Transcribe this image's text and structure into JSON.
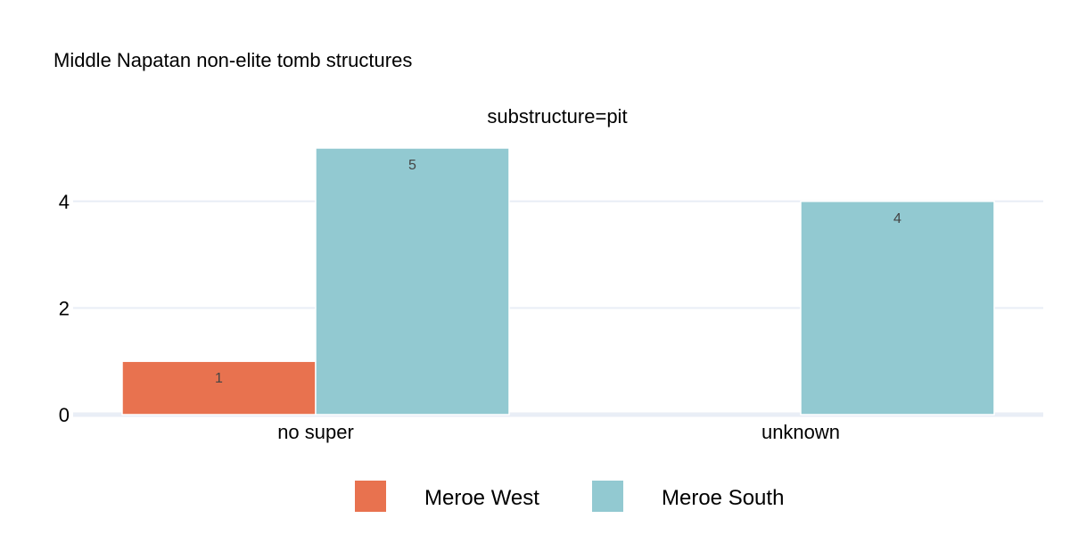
{
  "chart_data": {
    "type": "bar",
    "title": "Middle Napatan non-elite tomb structures",
    "facet_title": "substructure=pit",
    "xlabel": "",
    "ylabel": "",
    "categories": [
      "no super",
      "unknown"
    ],
    "series": [
      {
        "name": "Meroe West",
        "color": "#E8724F",
        "values": [
          1,
          null
        ]
      },
      {
        "name": "Meroe South",
        "color": "#92C9D1",
        "values": [
          5,
          4
        ]
      }
    ],
    "ylim": [
      0,
      5
    ],
    "yticks": [
      0,
      2,
      4
    ],
    "grid": true,
    "gridColor": "#E9EEF6",
    "barmode": "group",
    "data_labels": true,
    "legend_position": "bottom-center"
  }
}
